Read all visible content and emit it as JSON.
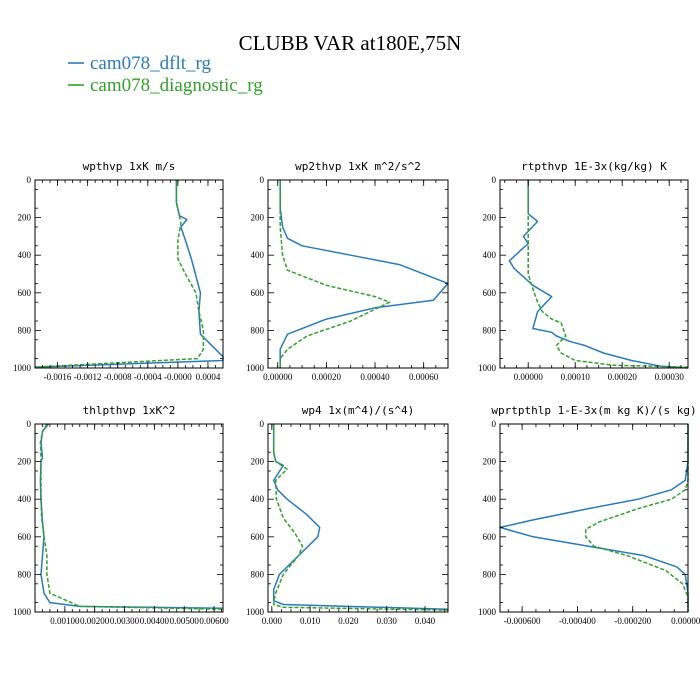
{
  "figure": {
    "title": "CLUBB VAR at180E,75N",
    "legend": [
      {
        "label": "cam078_dflt_rg",
        "color": "#2a7ab8",
        "dash": "solid"
      },
      {
        "label": "cam078_diagnostic_rg",
        "color": "#33a02c",
        "dash": "dashed"
      }
    ]
  },
  "chart_data": [
    {
      "type": "line",
      "title": "wpthvp 1xK m/s",
      "xlim": [
        -0.0019,
        0.0006
      ],
      "ylim": [
        1000,
        0
      ],
      "xticks": [
        -0.0016,
        -0.0012,
        -0.0008,
        -0.0004,
        0.0,
        0.0004
      ],
      "xtick_labels": [
        "-0.0016",
        "-0.0012",
        "-0.0008",
        "-0.0004",
        "-0.0000",
        "0.0004"
      ],
      "yticks": [
        0,
        200,
        400,
        600,
        800,
        1000
      ],
      "series": [
        {
          "name": "cam078_dflt_rg",
          "x": [
            -2e-05,
            -2e-05,
            2e-05,
            0.00012,
            4e-05,
            0.0001,
            0.00018,
            0.0003,
            0.00028,
            0.0003,
            0.0005,
            0.0006,
            0.0006,
            -0.0019
          ],
          "y": [
            0,
            120,
            190,
            210,
            250,
            320,
            420,
            600,
            700,
            820,
            900,
            940,
            960,
            995
          ]
        },
        {
          "name": "cam078_diagnostic_rg",
          "x": [
            -2e-05,
            -2e-05,
            2e-05,
            4e-05,
            0.0,
            0.0,
            0.0001,
            0.00024,
            0.00028,
            0.00034,
            0.00034,
            0.00026,
            -0.0019
          ],
          "y": [
            0,
            120,
            190,
            230,
            320,
            420,
            500,
            600,
            700,
            800,
            900,
            950,
            995
          ]
        }
      ]
    },
    {
      "type": "line",
      "title": "wp2thvp 1xK m^2/s^2",
      "xlim": [
        -4e-05,
        0.0007
      ],
      "ylim": [
        1000,
        0
      ],
      "xticks": [
        0.0,
        0.0002,
        0.0004,
        0.0006
      ],
      "xtick_labels": [
        "0.00000",
        "0.00020",
        "0.00040",
        "0.00060"
      ],
      "yticks": [
        0,
        200,
        400,
        600,
        800,
        1000
      ],
      "series": [
        {
          "name": "cam078_dflt_rg",
          "x": [
            1e-05,
            1e-05,
            2e-05,
            4e-05,
            0.0001,
            0.0003,
            0.0005,
            0.0007,
            0.00064,
            0.0004,
            0.0002,
            4e-05,
            1e-05,
            1e-05,
            1e-05,
            1e-05
          ],
          "y": [
            0,
            150,
            250,
            310,
            350,
            400,
            450,
            550,
            640,
            680,
            740,
            820,
            900,
            940,
            960,
            1000
          ]
        },
        {
          "name": "cam078_diagnostic_rg",
          "x": [
            1e-05,
            1e-05,
            2e-05,
            4e-05,
            0.0002,
            0.0004,
            0.00046,
            0.0003,
            0.00012,
            4e-05,
            1e-05,
            1e-05
          ],
          "y": [
            0,
            250,
            400,
            480,
            560,
            620,
            650,
            750,
            830,
            900,
            950,
            1000
          ]
        }
      ]
    },
    {
      "type": "line",
      "title": "rtpthvp 1E-3x(kg/kg) K",
      "xlim": [
        -6e-05,
        0.00034
      ],
      "ylim": [
        1000,
        0
      ],
      "xticks": [
        0.0,
        0.0001,
        0.0002,
        0.0003
      ],
      "xtick_labels": [
        "0.00000",
        "0.00010",
        "0.00020",
        "0.00030"
      ],
      "yticks": [
        0,
        200,
        400,
        600,
        800,
        1000
      ],
      "series": [
        {
          "name": "cam078_dflt_rg",
          "x": [
            0.0,
            0.0,
            2e-05,
            -1e-05,
            0.0,
            -1e-05,
            -4e-05,
            -3e-05,
            1e-05,
            5e-05,
            2e-05,
            1e-05,
            5e-05,
            6e-05,
            9e-05,
            0.00012,
            0.00016,
            0.00022,
            0.00026,
            0.00028,
            0.00034
          ],
          "y": [
            0,
            180,
            220,
            300,
            340,
            360,
            430,
            470,
            560,
            620,
            700,
            790,
            810,
            830,
            860,
            880,
            920,
            960,
            980,
            990,
            1000
          ]
        },
        {
          "name": "cam078_diagnostic_rg",
          "x": [
            0.0,
            0.0,
            0.0,
            0.0,
            1e-05,
            2e-05,
            3e-05,
            5e-05,
            7e-05,
            8e-05,
            6e-05,
            7e-05,
            0.0001,
            0.00018,
            0.00034
          ],
          "y": [
            0,
            150,
            300,
            500,
            580,
            650,
            700,
            740,
            760,
            830,
            880,
            920,
            960,
            985,
            995
          ]
        }
      ]
    },
    {
      "type": "line",
      "title": "thlpthvp 1xK^2",
      "xlim": [
        0.0,
        0.0063
      ],
      "ylim": [
        1000,
        0
      ],
      "xticks": [
        0.001,
        0.002,
        0.003,
        0.004,
        0.005,
        0.006
      ],
      "xtick_labels": [
        "0.00100",
        "0.00200",
        "0.00300",
        "0.00400",
        "0.00500",
        "0.00600"
      ],
      "yticks": [
        0,
        200,
        400,
        600,
        800,
        1000
      ],
      "series": [
        {
          "name": "cam078_dflt_rg",
          "x": [
            0.00045,
            0.00025,
            0.0002,
            0.00025,
            0.0002,
            0.00018,
            0.0002,
            0.00025,
            0.0003,
            0.00025,
            0.0002,
            0.0003,
            0.0005,
            0.0015,
            0.0063
          ],
          "y": [
            0,
            40,
            100,
            180,
            200,
            300,
            400,
            520,
            600,
            700,
            800,
            900,
            950,
            970,
            980
          ]
        },
        {
          "name": "cam078_diagnostic_rg",
          "x": [
            0.0004,
            0.00025,
            0.00018,
            0.0002,
            0.0002,
            0.0002,
            0.00022,
            0.0003,
            0.0004,
            0.0004,
            0.0005,
            0.0015,
            0.0063
          ],
          "y": [
            0,
            40,
            100,
            180,
            300,
            400,
            500,
            600,
            700,
            800,
            900,
            970,
            985
          ]
        }
      ]
    },
    {
      "type": "line",
      "title": "wp4 1x(m^4)/(s^4)",
      "xlim": [
        -0.001,
        0.046
      ],
      "ylim": [
        1000,
        0
      ],
      "xticks": [
        0.0,
        0.01,
        0.02,
        0.03,
        0.04
      ],
      "xtick_labels": [
        "0.000",
        "0.010",
        "0.020",
        "0.030",
        "0.040"
      ],
      "yticks": [
        0,
        200,
        400,
        600,
        800,
        1000
      ],
      "series": [
        {
          "name": "cam078_dflt_rg",
          "x": [
            0.0005,
            0.0005,
            0.001,
            0.003,
            0.0005,
            0.0015,
            0.004,
            0.009,
            0.0125,
            0.012,
            0.007,
            0.002,
            0.0005,
            0.0005,
            0.003,
            0.046
          ],
          "y": [
            0,
            150,
            200,
            220,
            300,
            350,
            400,
            480,
            550,
            600,
            700,
            800,
            880,
            940,
            960,
            985
          ]
        },
        {
          "name": "cam078_diagnostic_rg",
          "x": [
            0.0005,
            0.0005,
            0.001,
            0.004,
            0.001,
            0.0012,
            0.003,
            0.006,
            0.008,
            0.007,
            0.003,
            0.001,
            0.0005,
            0.0005,
            0.003,
            0.046
          ],
          "y": [
            0,
            150,
            200,
            240,
            300,
            400,
            500,
            580,
            650,
            700,
            800,
            900,
            940,
            960,
            975,
            990
          ]
        }
      ]
    },
    {
      "type": "line",
      "title": "wprtpthlp 1-E-3x(m kg K)/(s kg)",
      "xlim": [
        -0.00068,
        0.0
      ],
      "ylim": [
        1000,
        0
      ],
      "xticks": [
        -0.0006,
        -0.0004,
        -0.0002,
        0.0
      ],
      "xtick_labels": [
        "-0.000600",
        "-0.000400",
        "-0.000200",
        "0.000000"
      ],
      "yticks": [
        0,
        200,
        400,
        600,
        800,
        1000
      ],
      "series": [
        {
          "name": "cam078_dflt_rg",
          "x": [
            0.0,
            0.0,
            -1e-05,
            -6e-05,
            -0.00018,
            -0.00036,
            -0.00056,
            -0.00068,
            -0.00056,
            -0.00036,
            -0.00016,
            -4e-05,
            -1e-05,
            0.0,
            0.0,
            0.0
          ],
          "y": [
            0,
            200,
            300,
            350,
            400,
            450,
            510,
            550,
            600,
            650,
            700,
            760,
            800,
            900,
            960,
            1000
          ]
        },
        {
          "name": "cam078_diagnostic_rg",
          "x": [
            0.0,
            0.0,
            -1e-05,
            -6e-05,
            -0.00018,
            -0.00032,
            -0.00037,
            -0.00037,
            -0.00034,
            -0.00022,
            -8e-05,
            -2e-05,
            0.0,
            0.0
          ],
          "y": [
            0,
            300,
            350,
            400,
            450,
            520,
            560,
            600,
            650,
            700,
            780,
            850,
            920,
            1000
          ]
        }
      ]
    }
  ]
}
